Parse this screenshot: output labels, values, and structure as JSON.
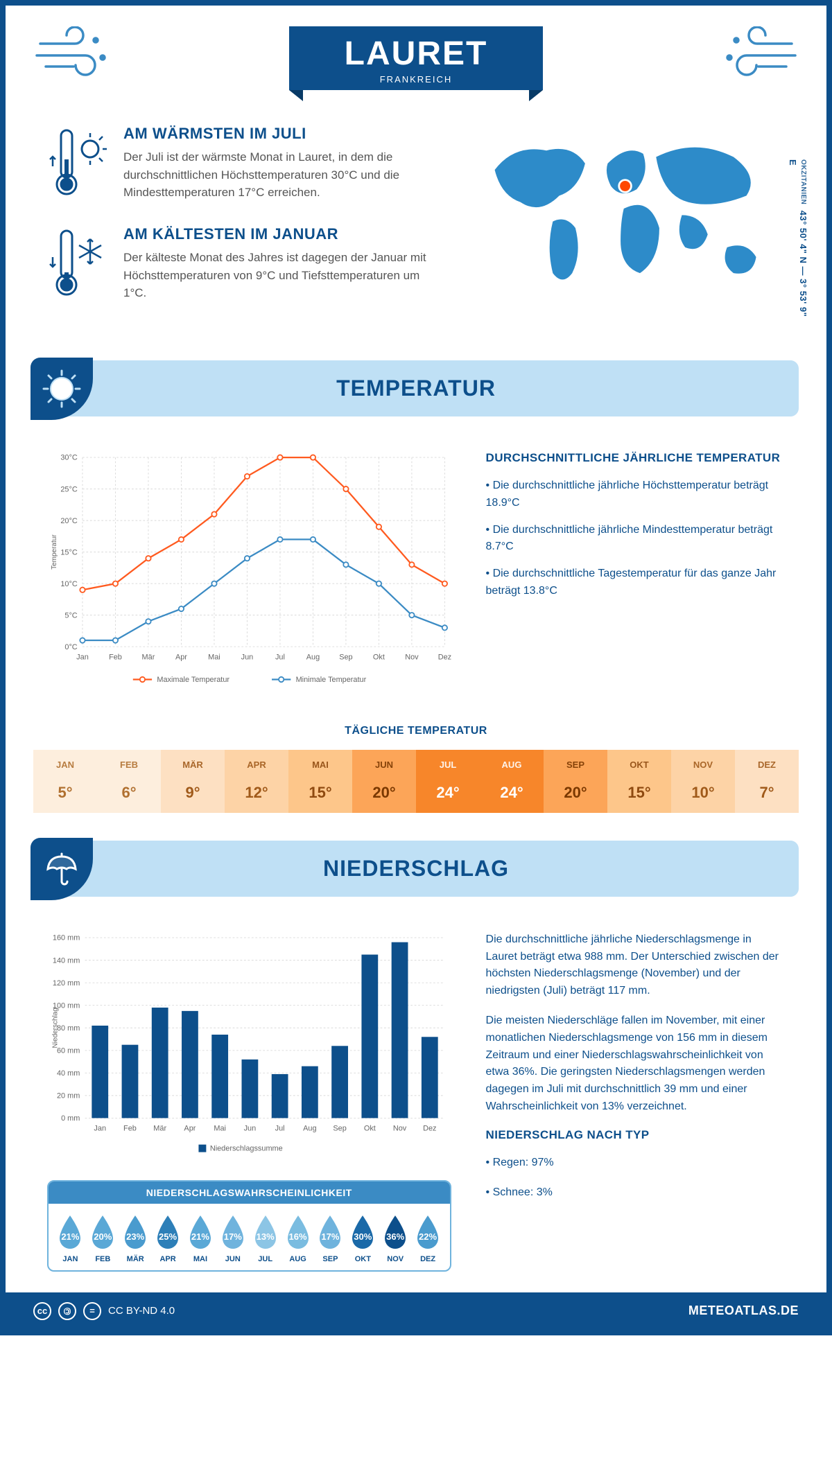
{
  "header": {
    "city": "LAURET",
    "country": "FRANKREICH"
  },
  "coords": {
    "text": "43° 50' 4\" N — 3° 53' 9\" E",
    "region": "OKZITANIEN"
  },
  "map": {
    "marker_color": "#ff4800",
    "fill": "#2d8bc9"
  },
  "warm": {
    "title": "AM WÄRMSTEN IM JULI",
    "text": "Der Juli ist der wärmste Monat in Lauret, in dem die durchschnittlichen Höchsttemperaturen 30°C und die Mindesttemperaturen 17°C erreichen."
  },
  "cold": {
    "title": "AM KÄLTESTEN IM JANUAR",
    "text": "Der kälteste Monat des Jahres ist dagegen der Januar mit Höchsttemperaturen von 9°C und Tiefsttemperaturen um 1°C."
  },
  "temp_section": {
    "title": "TEMPERATUR",
    "chart": {
      "type": "line",
      "months": [
        "Jan",
        "Feb",
        "Mär",
        "Apr",
        "Mai",
        "Jun",
        "Jul",
        "Aug",
        "Sep",
        "Okt",
        "Nov",
        "Dez"
      ],
      "max": [
        9,
        10,
        14,
        17,
        21,
        27,
        30,
        30,
        25,
        19,
        13,
        10
      ],
      "min": [
        1,
        1,
        4,
        6,
        10,
        14,
        17,
        17,
        13,
        10,
        5,
        3
      ],
      "max_color": "#ff5a1f",
      "min_color": "#3b8bc4",
      "ylim": [
        0,
        30
      ],
      "ytick_step": 5,
      "ylabel": "Temperatur",
      "grid_color": "#d9d9d9",
      "background": "#ffffff",
      "legend": {
        "max": "Maximale Temperatur",
        "min": "Minimale Temperatur"
      },
      "label_fontsize": 12
    },
    "facts": {
      "title": "DURCHSCHNITTLICHE JÄHRLICHE TEMPERATUR",
      "items": [
        "• Die durchschnittliche jährliche Höchsttemperatur beträgt 18.9°C",
        "• Die durchschnittliche jährliche Mindesttemperatur beträgt 8.7°C",
        "• Die durchschnittliche Tagestemperatur für das ganze Jahr beträgt 13.8°C"
      ]
    },
    "daily": {
      "title": "TÄGLICHE TEMPERATUR",
      "months": [
        "JAN",
        "FEB",
        "MÄR",
        "APR",
        "MAI",
        "JUN",
        "JUL",
        "AUG",
        "SEP",
        "OKT",
        "NOV",
        "DEZ"
      ],
      "values": [
        "5°",
        "6°",
        "9°",
        "12°",
        "15°",
        "20°",
        "24°",
        "24°",
        "20°",
        "15°",
        "10°",
        "7°"
      ],
      "bg_colors": [
        "#fdeedd",
        "#fdeedd",
        "#fde0c2",
        "#fdd3a6",
        "#fdc68a",
        "#fca558",
        "#f7862a",
        "#f7862a",
        "#fca558",
        "#fdc68a",
        "#fdd3a6",
        "#fde0c2"
      ],
      "text_colors": [
        "#b07030",
        "#b07030",
        "#a05a1a",
        "#a05a1a",
        "#8f4a10",
        "#7a3800",
        "#ffffff",
        "#ffffff",
        "#7a3800",
        "#8f4a10",
        "#a05a1a",
        "#a05a1a"
      ]
    }
  },
  "precip_section": {
    "title": "NIEDERSCHLAG",
    "chart": {
      "type": "bar",
      "months": [
        "Jan",
        "Feb",
        "Mär",
        "Apr",
        "Mai",
        "Jun",
        "Jul",
        "Aug",
        "Sep",
        "Okt",
        "Nov",
        "Dez"
      ],
      "values": [
        82,
        65,
        98,
        95,
        74,
        52,
        39,
        46,
        64,
        145,
        156,
        72
      ],
      "bar_color": "#0d4f8b",
      "ylim": [
        0,
        160
      ],
      "ytick_step": 20,
      "ylabel": "Niederschlag",
      "grid_color": "#d9d9d9",
      "legend": "Niederschlagssumme",
      "bar_width": 0.55,
      "label_fontsize": 12
    },
    "text": [
      "Die durchschnittliche jährliche Niederschlagsmenge in Lauret beträgt etwa 988 mm. Der Unterschied zwischen der höchsten Niederschlagsmenge (November) und der niedrigsten (Juli) beträgt 117 mm.",
      "Die meisten Niederschläge fallen im November, mit einer monatlichen Niederschlagsmenge von 156 mm in diesem Zeitraum und einer Niederschlagswahrscheinlichkeit von etwa 36%. Die geringsten Niederschlagsmengen werden dagegen im Juli mit durchschnittlich 39 mm und einer Wahrscheinlichkeit von 13% verzeichnet."
    ],
    "type": {
      "title": "NIEDERSCHLAG NACH TYP",
      "items": [
        "• Regen: 97%",
        "• Schnee: 3%"
      ]
    },
    "prob": {
      "title": "NIEDERSCHLAGSWAHRSCHEINLICHKEIT",
      "months": [
        "JAN",
        "FEB",
        "MÄR",
        "APR",
        "MAI",
        "JUN",
        "JUL",
        "AUG",
        "SEP",
        "OKT",
        "NOV",
        "DEZ"
      ],
      "values": [
        "21%",
        "20%",
        "23%",
        "25%",
        "21%",
        "17%",
        "13%",
        "16%",
        "17%",
        "30%",
        "36%",
        "22%"
      ],
      "colors": [
        "#5aa8d6",
        "#5aa8d6",
        "#4a9bce",
        "#2d7fb8",
        "#5aa8d6",
        "#6fb3dd",
        "#8cc5e5",
        "#7abce0",
        "#6fb3dd",
        "#1a69a8",
        "#0d4f8b",
        "#4a9bce"
      ]
    }
  },
  "footer": {
    "license": "CC BY-ND 4.0",
    "brand": "METEOATLAS.DE"
  },
  "colors": {
    "primary": "#0d4f8b",
    "light": "#bfe0f5",
    "mid": "#3b8bc4"
  }
}
